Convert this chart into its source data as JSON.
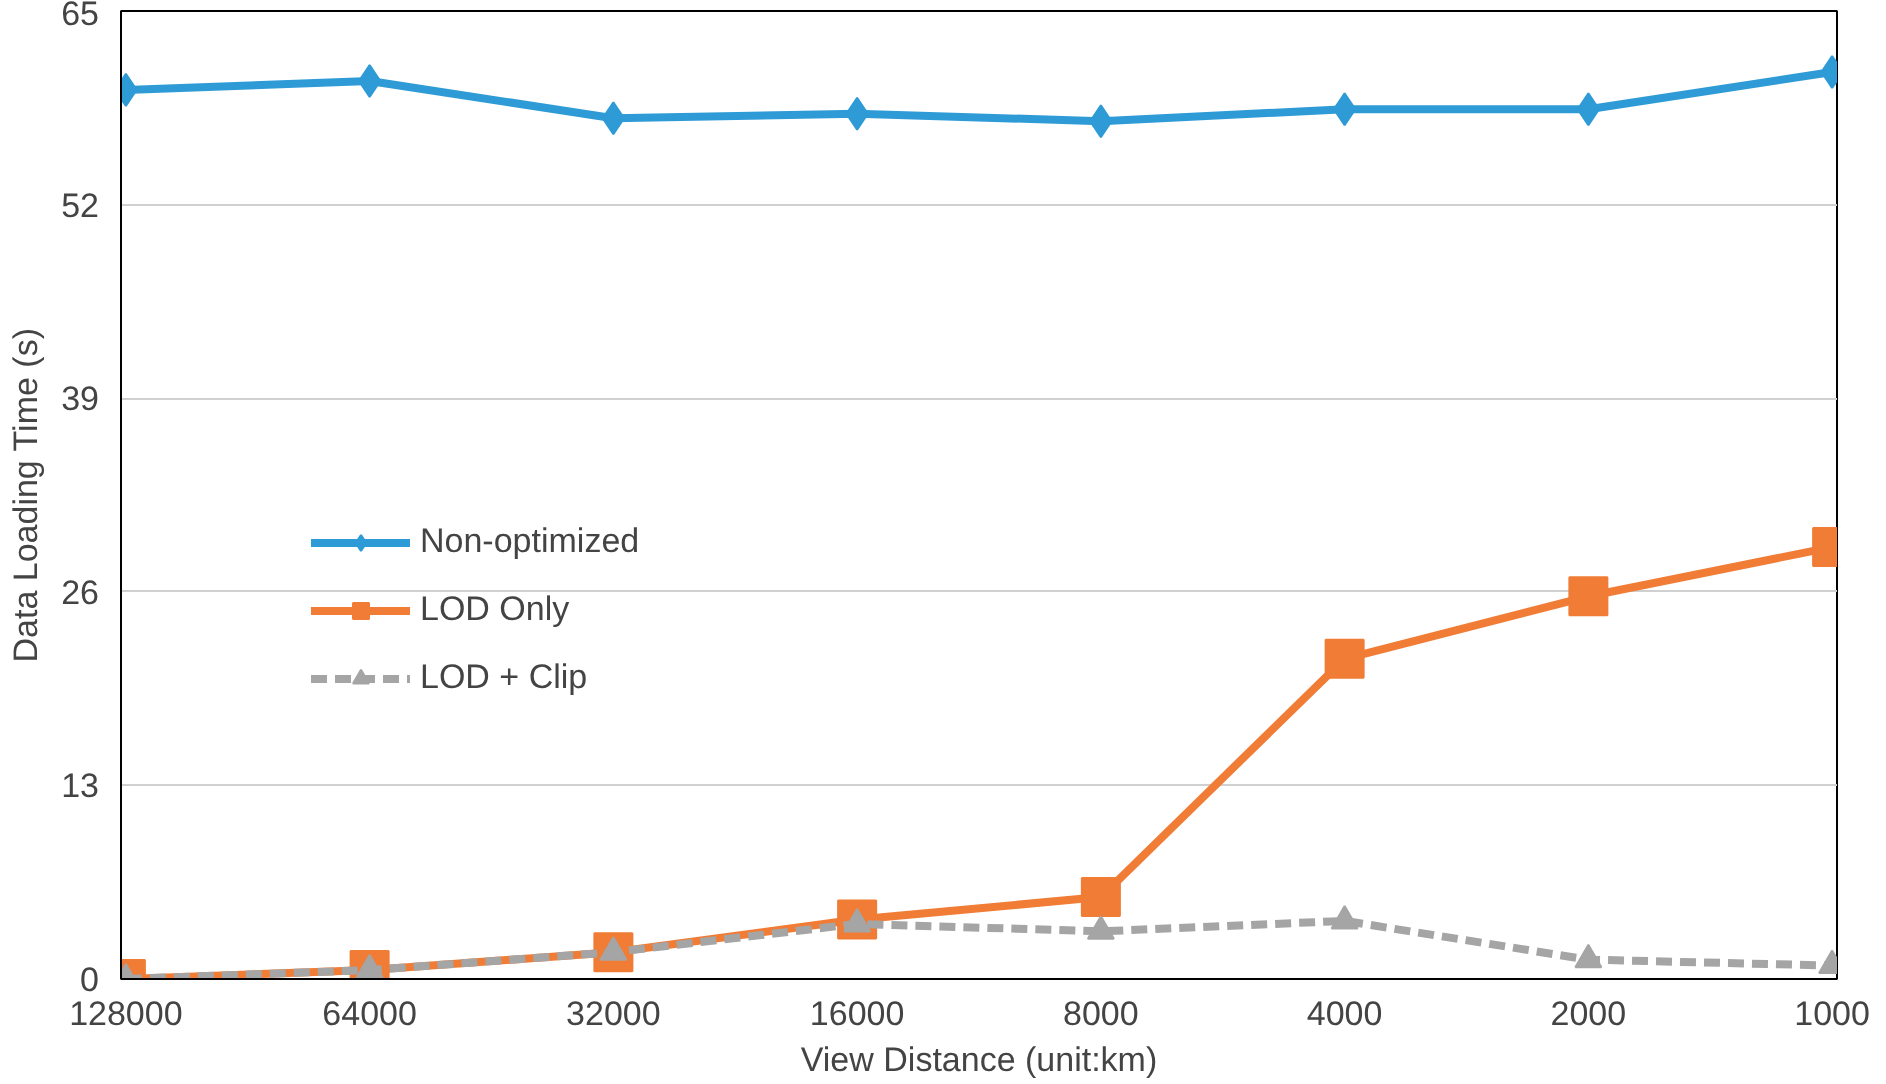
{
  "chart_data": {
    "type": "line",
    "xlabel": "View Distance (unit:km)",
    "ylabel": "Data Loading Time (s)",
    "categories": [
      "128000",
      "64000",
      "32000",
      "16000",
      "8000",
      "4000",
      "2000",
      "1000"
    ],
    "ylim": [
      0,
      65
    ],
    "yticks": [
      0,
      13,
      26,
      39,
      52,
      65
    ],
    "grid": "y",
    "legend": "left",
    "series": [
      {
        "name": "Non-optimized",
        "color": "#2e9bd6",
        "marker": "diamond",
        "line_style": "solid",
        "values": [
          59.7,
          60.3,
          57.8,
          58.1,
          57.6,
          58.4,
          58.4,
          60.9
        ]
      },
      {
        "name": "LOD Only",
        "color": "#f07c35",
        "marker": "square",
        "line_style": "solid",
        "values": [
          0,
          0.6,
          1.8,
          4.0,
          5.5,
          21.5,
          25.7,
          29.0
        ]
      },
      {
        "name": "LOD + Clip",
        "color": "#a5a5a5",
        "marker": "triangle",
        "line_style": "dashed",
        "values": [
          0,
          0.6,
          1.8,
          3.7,
          3.2,
          3.9,
          1.3,
          0.9
        ]
      }
    ]
  }
}
